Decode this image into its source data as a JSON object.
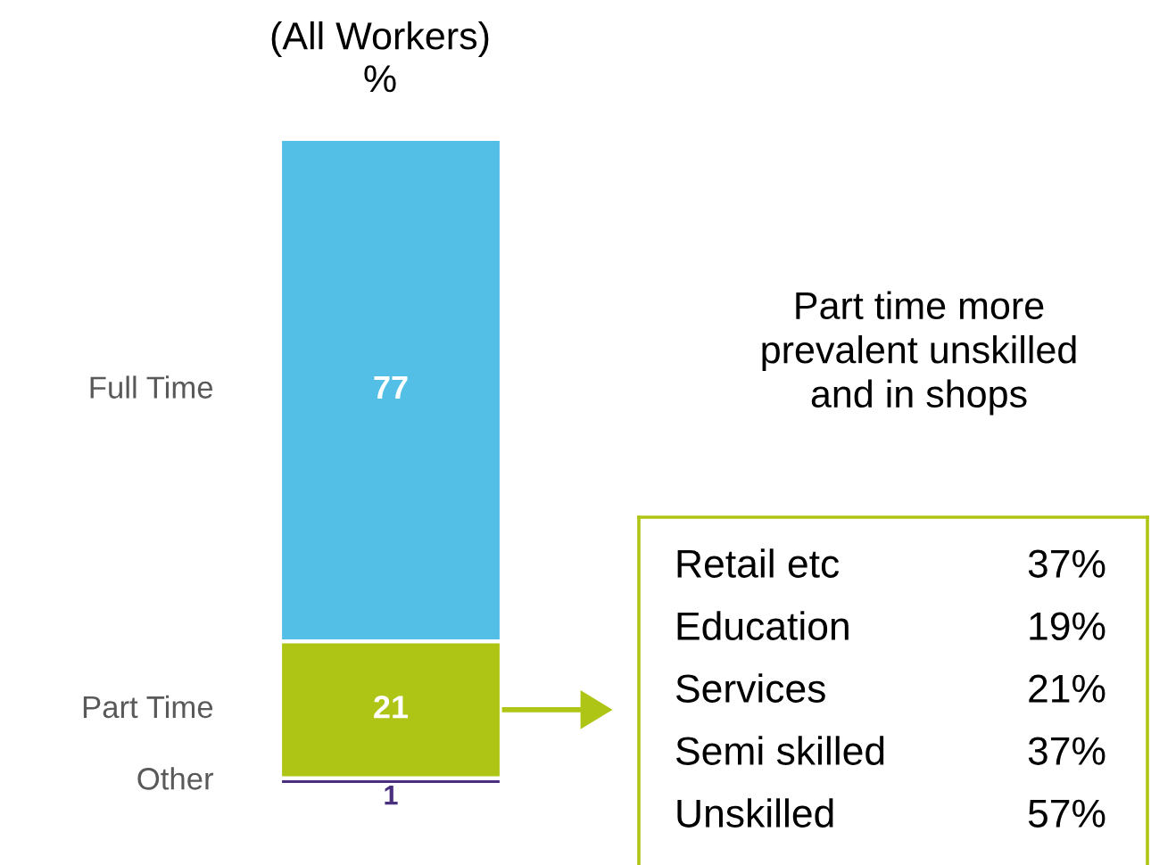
{
  "chart_data": {
    "type": "bar",
    "title": "(All Workers)\n%",
    "categories": [
      null
    ],
    "stacked": true,
    "data_labels": true,
    "series": [
      {
        "name": "Other",
        "color": "#4b2f7f",
        "values": [
          1
        ]
      },
      {
        "name": "Part Time",
        "color": "#afc515",
        "values": [
          21
        ]
      },
      {
        "name": "Full Time",
        "color": "#54bfe6",
        "values": [
          77
        ]
      }
    ],
    "annotations": [
      "Part time more\nprevalent unskilled\nand in shops",
      "Retail etc",
      "37%",
      "Education",
      "19%",
      "Services",
      "21%",
      "Semi skilled",
      "37%",
      "Unskilled",
      "57%"
    ]
  }
}
